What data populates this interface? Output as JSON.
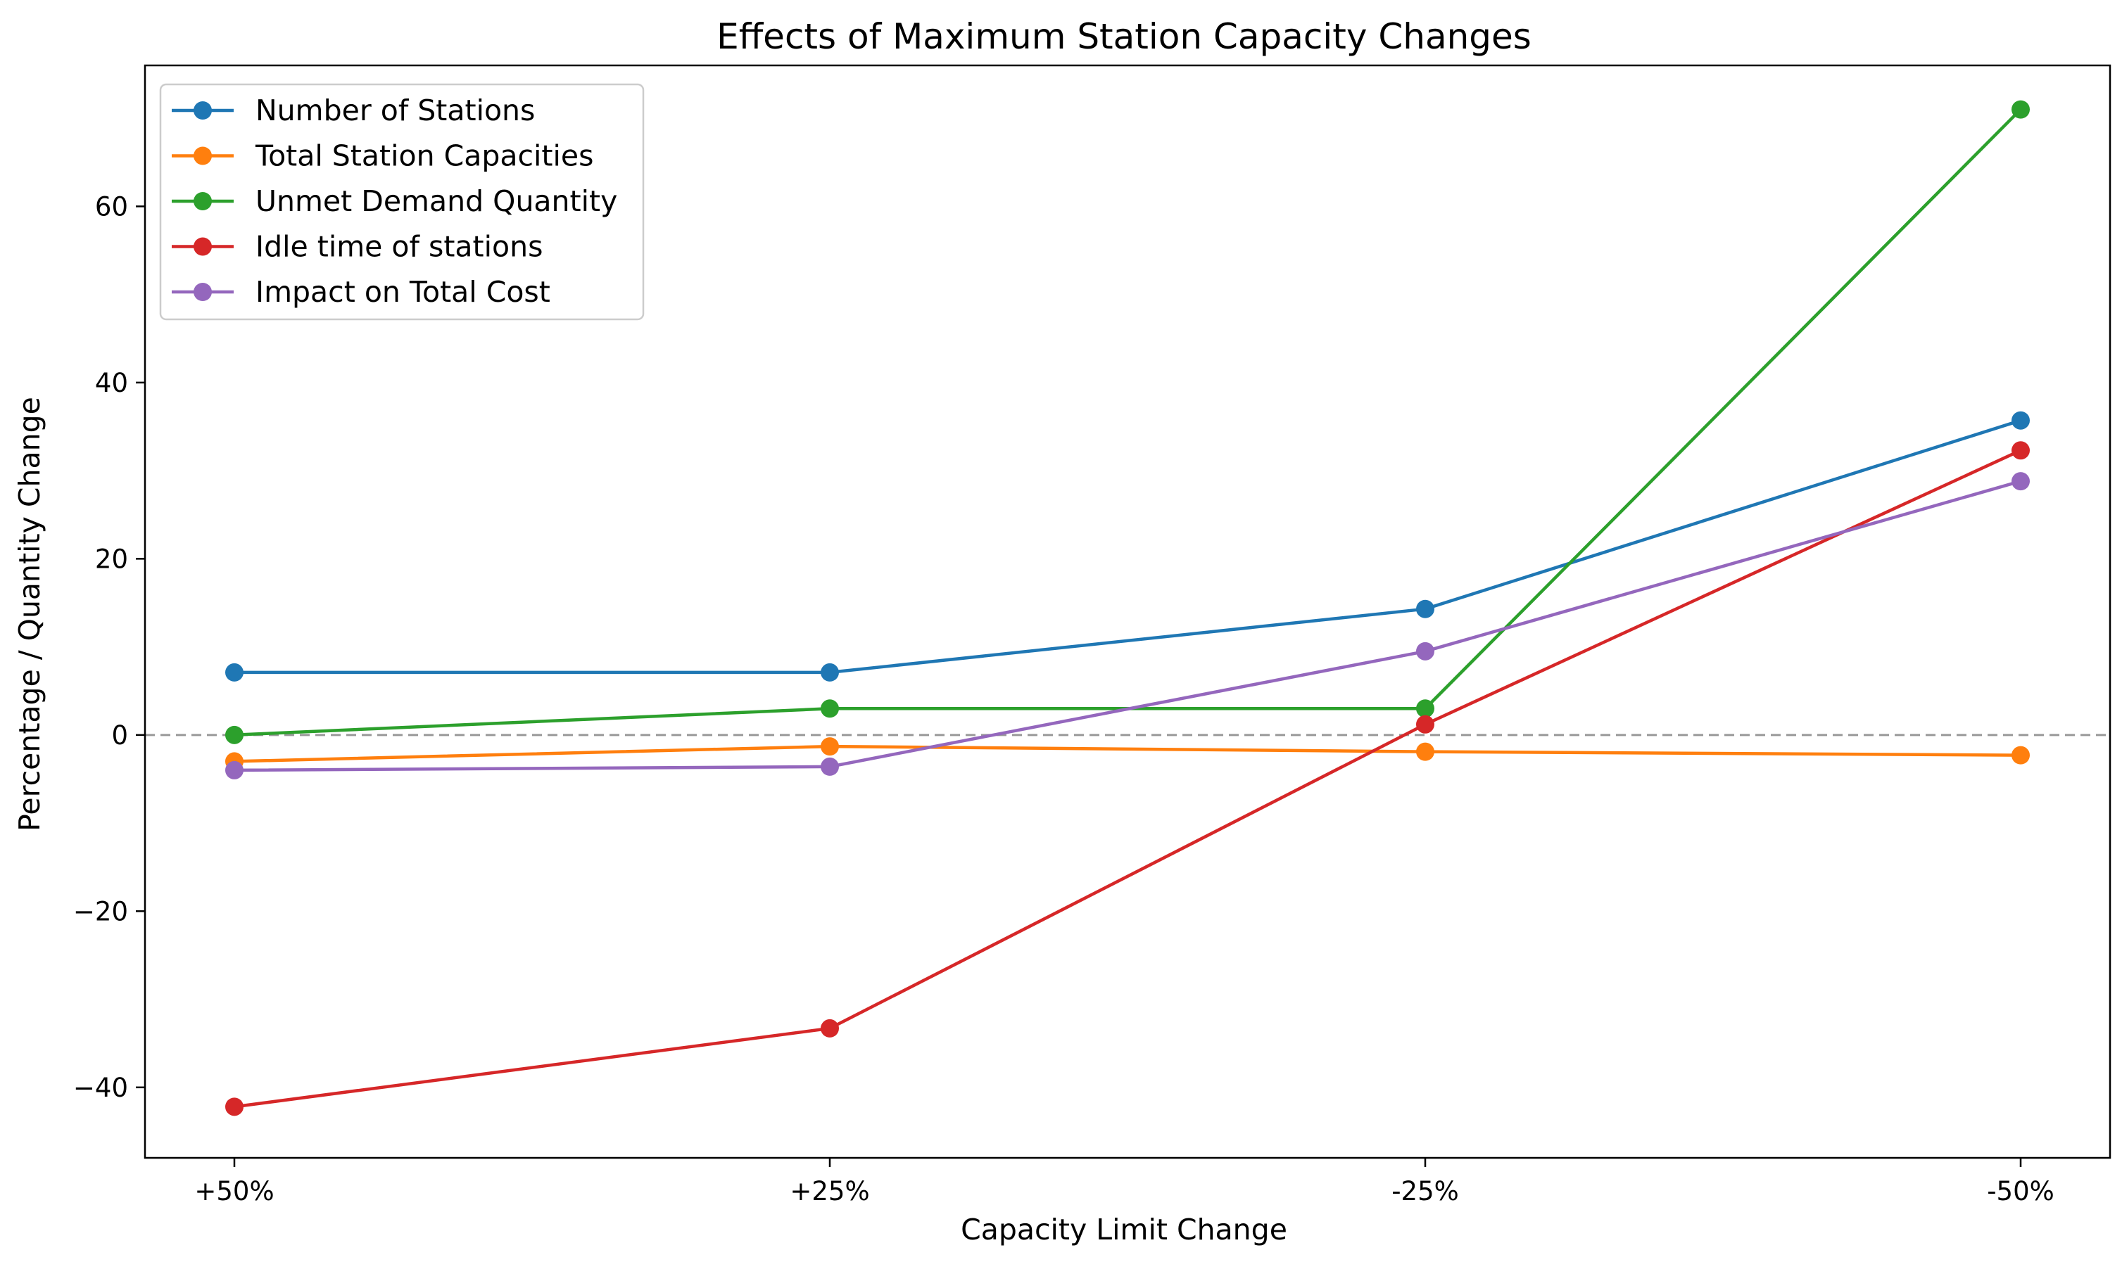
{
  "chart_data": {
    "type": "line",
    "title": "Effects of Maximum Station Capacity Changes",
    "xlabel": "Capacity Limit Change",
    "ylabel": "Percentage / Quantity Change",
    "categories": [
      "+50%",
      "+25%",
      "-25%",
      "-50%"
    ],
    "ylim": [
      -48,
      76
    ],
    "yticks": [
      -40,
      -20,
      0,
      20,
      40,
      60
    ],
    "ytick_labels": [
      "−40",
      "−20",
      "0",
      "20",
      "40",
      "60"
    ],
    "reference_line": {
      "y": 0,
      "style": "dashed",
      "color": "#999999"
    },
    "grid": false,
    "legend_position": "top-left",
    "series": [
      {
        "name": "Number of Stations",
        "color": "#1f77b4",
        "values": [
          7.1,
          7.1,
          14.3,
          35.7
        ]
      },
      {
        "name": "Total Station Capacities",
        "color": "#ff7f0e",
        "values": [
          -3.0,
          -1.3,
          -1.9,
          -2.3
        ]
      },
      {
        "name": "Unmet Demand Quantity",
        "color": "#2ca02c",
        "values": [
          0.0,
          3.0,
          3.0,
          71.0
        ]
      },
      {
        "name": "Idle time of stations",
        "color": "#d62728",
        "values": [
          -42.2,
          -33.3,
          1.2,
          32.3
        ]
      },
      {
        "name": "Impact on Total Cost",
        "color": "#9467bd",
        "values": [
          -4.0,
          -3.6,
          9.5,
          28.8
        ]
      }
    ]
  }
}
